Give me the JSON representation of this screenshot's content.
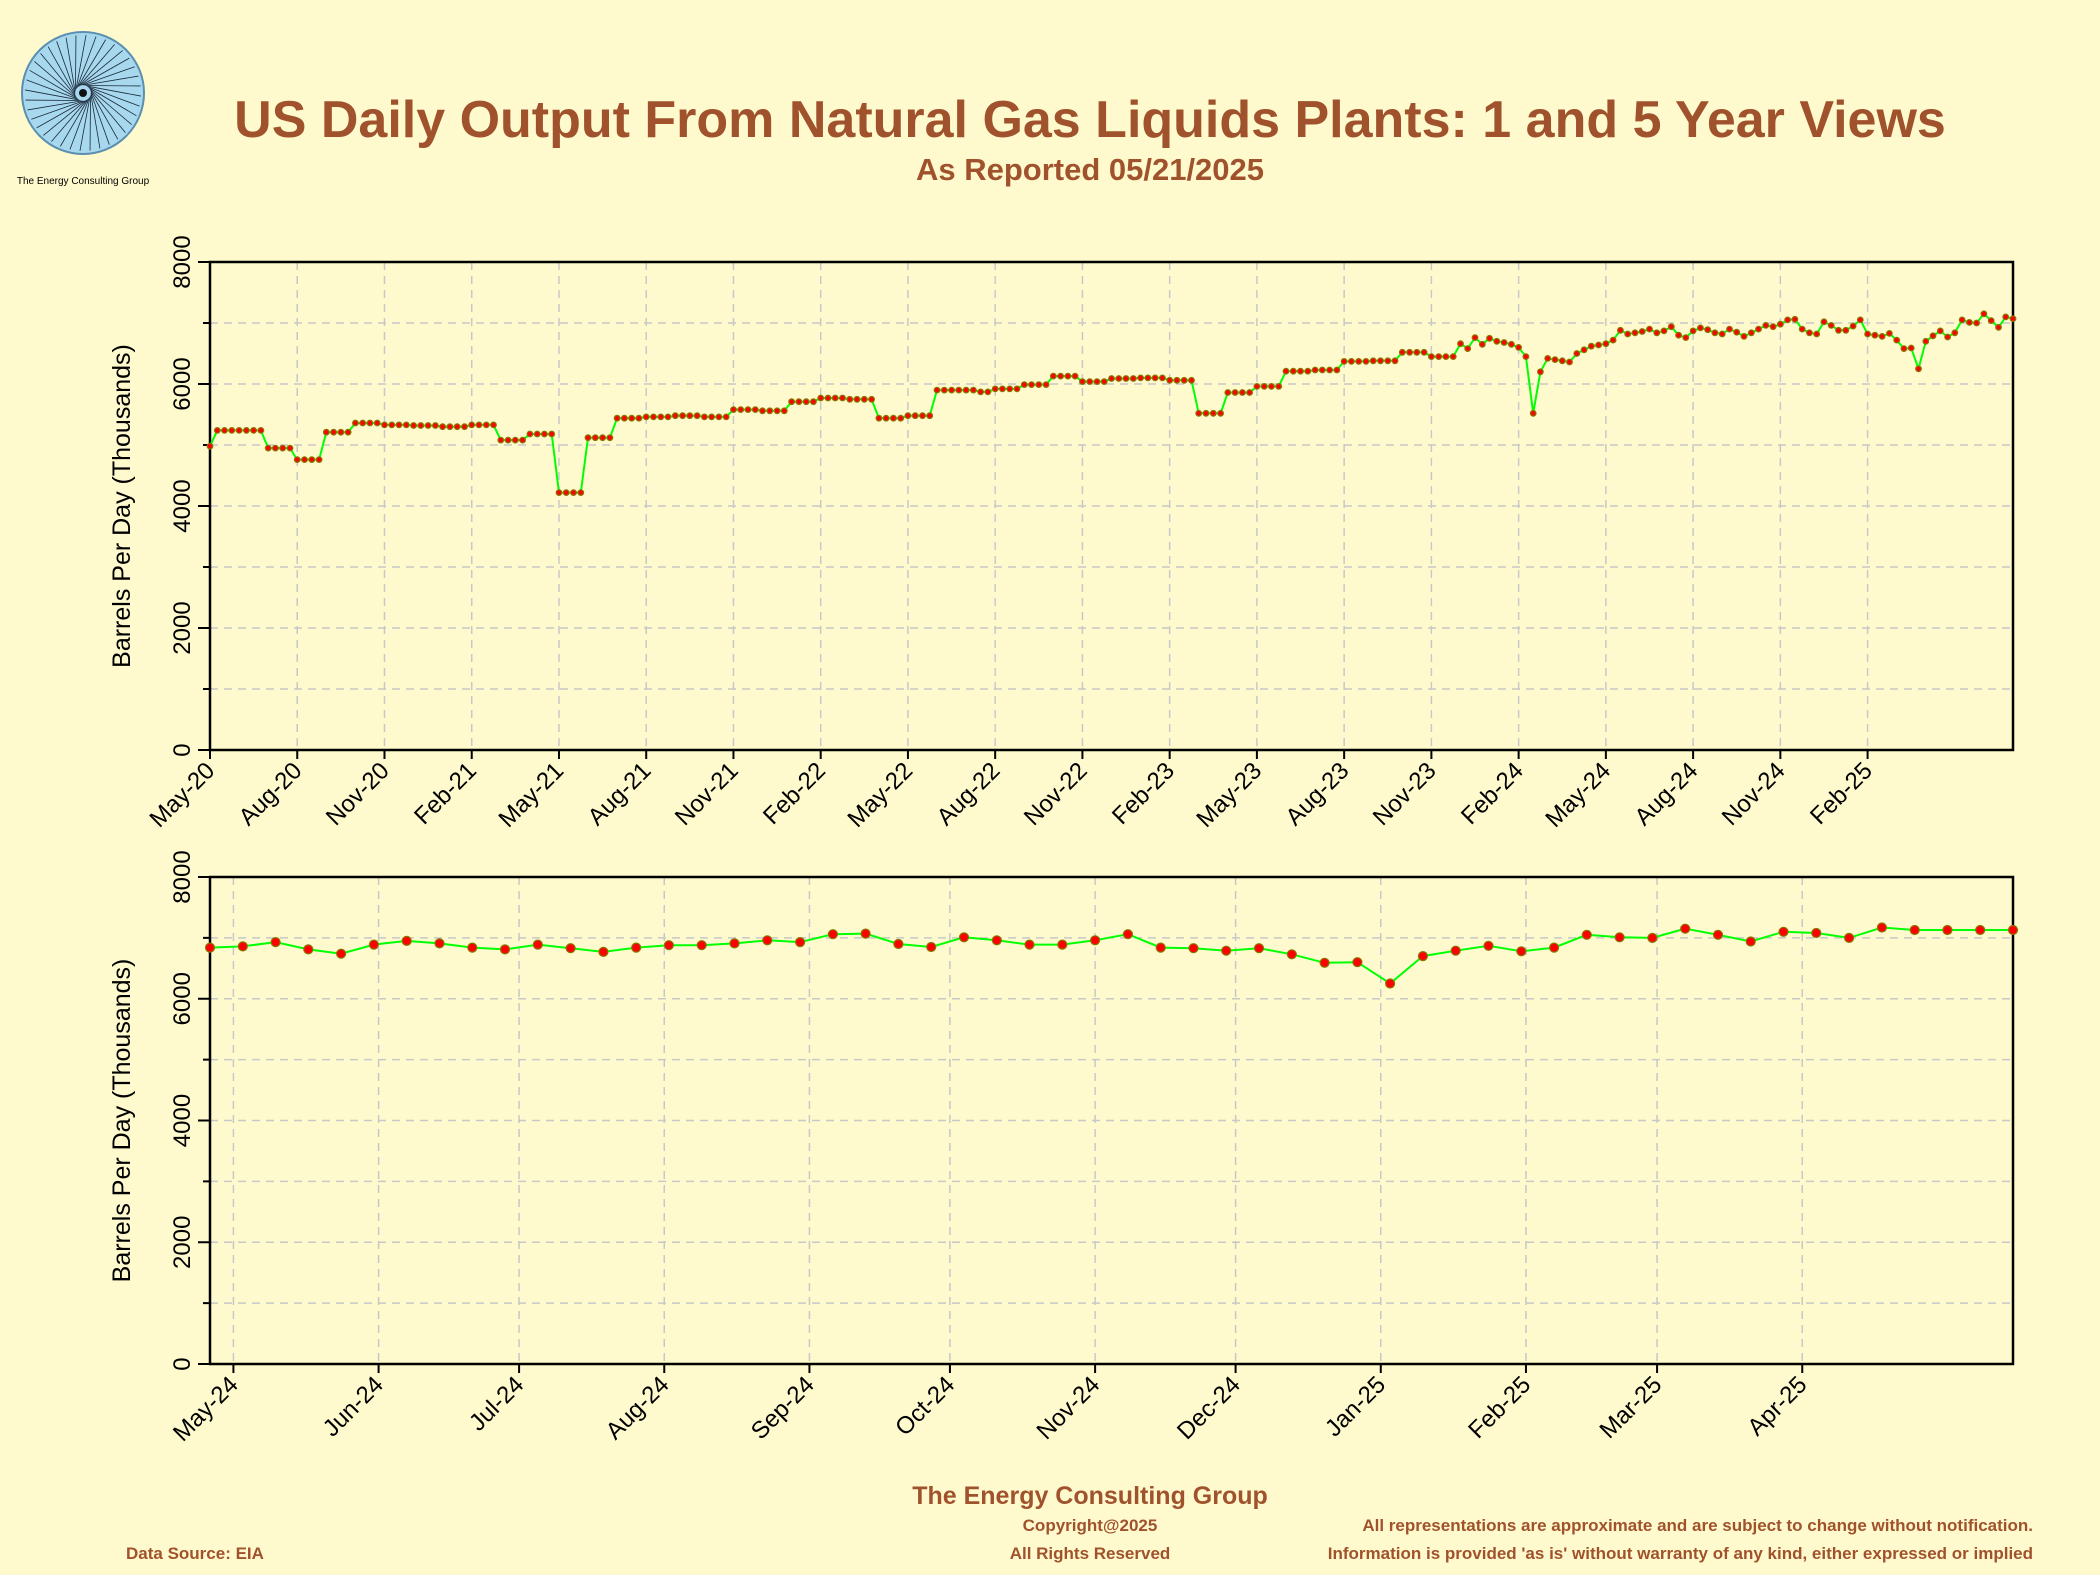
{
  "header": {
    "logo_caption": "The Energy Consulting Group",
    "title": "US Daily Output From Natural Gas Liquids Plants: 1 and 5 Year Views",
    "subtitle": "As Reported 05/21/2025"
  },
  "colors": {
    "background": "#fffacd",
    "title": "#a0522d",
    "line": "#00ff00",
    "marker_fill": "#ff0000",
    "marker_outline": "#8b7500",
    "grid": "#c8c8c8"
  },
  "footer": {
    "company": "The Energy Consulting Group",
    "copyright": "Copyright@2025",
    "rights": "All Rights Reserved",
    "data_source": "Data Source: EIA",
    "disclaimer1": "All representations are approximate and are subject to change without notification.",
    "disclaimer2": "Information is provided 'as is' without warranty of any kind, either expressed or implied"
  },
  "chart_data": [
    {
      "type": "line",
      "title": "",
      "xlabel": "",
      "ylabel": "Barrels Per Day (Thousands)",
      "ylim": [
        0,
        8000
      ],
      "yticks": [
        0,
        2000,
        4000,
        6000,
        8000
      ],
      "xlim": [
        "2020-05",
        "2025-05"
      ],
      "xticks": [
        {
          "label": "May-20",
          "month": "2020-05"
        },
        {
          "label": "Aug-20",
          "month": "2020-08"
        },
        {
          "label": "Nov-20",
          "month": "2020-11"
        },
        {
          "label": "Feb-21",
          "month": "2021-02"
        },
        {
          "label": "May-21",
          "month": "2021-05"
        },
        {
          "label": "Aug-21",
          "month": "2021-08"
        },
        {
          "label": "Nov-21",
          "month": "2021-11"
        },
        {
          "label": "Feb-22",
          "month": "2022-02"
        },
        {
          "label": "May-22",
          "month": "2022-05"
        },
        {
          "label": "Aug-22",
          "month": "2022-08"
        },
        {
          "label": "Nov-22",
          "month": "2022-11"
        },
        {
          "label": "Feb-23",
          "month": "2023-02"
        },
        {
          "label": "May-23",
          "month": "2023-05"
        },
        {
          "label": "Aug-23",
          "month": "2023-08"
        },
        {
          "label": "Nov-23",
          "month": "2023-11"
        },
        {
          "label": "Feb-24",
          "month": "2024-02"
        },
        {
          "label": "May-24",
          "month": "2024-05"
        },
        {
          "label": "Aug-24",
          "month": "2024-08"
        },
        {
          "label": "Nov-24",
          "month": "2024-11"
        },
        {
          "label": "Feb-25",
          "month": "2025-02"
        }
      ],
      "grid": true,
      "series": [
        {
          "name": "",
          "monthly": [
            {
              "month": "2020-05",
              "values": [
                4980,
                5240,
                5240,
                5240
              ]
            },
            {
              "month": "2020-06",
              "values": [
                5240,
                5240,
                5240,
                5240
              ]
            },
            {
              "month": "2020-07",
              "values": [
                4950,
                4950,
                4950,
                4950
              ]
            },
            {
              "month": "2020-08",
              "values": [
                4760,
                4760,
                4760,
                4760
              ]
            },
            {
              "month": "2020-09",
              "values": [
                5210,
                5210,
                5210,
                5210
              ]
            },
            {
              "month": "2020-10",
              "values": [
                5360,
                5360,
                5360,
                5360
              ]
            },
            {
              "month": "2020-11",
              "values": [
                5330,
                5330,
                5330,
                5330
              ]
            },
            {
              "month": "2020-12",
              "values": [
                5320,
                5320,
                5320,
                5320
              ]
            },
            {
              "month": "2021-01",
              "values": [
                5300,
                5300,
                5300,
                5300
              ]
            },
            {
              "month": "2021-02",
              "values": [
                5330,
                5330,
                5330,
                5330
              ]
            },
            {
              "month": "2021-03",
              "values": [
                5080,
                5080,
                5080,
                5080
              ]
            },
            {
              "month": "2021-04",
              "values": [
                5180,
                5180,
                5180,
                5180
              ]
            },
            {
              "month": "2021-05",
              "values": [
                4220,
                4220,
                4220,
                4220
              ]
            },
            {
              "month": "2021-06",
              "values": [
                5120,
                5120,
                5120,
                5120
              ]
            },
            {
              "month": "2021-07",
              "values": [
                5440,
                5440,
                5440,
                5440
              ]
            },
            {
              "month": "2021-08",
              "values": [
                5460,
                5460,
                5460,
                5460
              ]
            },
            {
              "month": "2021-09",
              "values": [
                5480,
                5480,
                5480,
                5480
              ]
            },
            {
              "month": "2021-10",
              "values": [
                5460,
                5460,
                5460,
                5460
              ]
            },
            {
              "month": "2021-11",
              "values": [
                5580,
                5580,
                5580,
                5580
              ]
            },
            {
              "month": "2021-12",
              "values": [
                5560,
                5560,
                5560,
                5560
              ]
            },
            {
              "month": "2022-01",
              "values": [
                5710,
                5710,
                5710,
                5710
              ]
            },
            {
              "month": "2022-02",
              "values": [
                5770,
                5770,
                5770,
                5770
              ]
            },
            {
              "month": "2022-03",
              "values": [
                5750,
                5750,
                5750,
                5750
              ]
            },
            {
              "month": "2022-04",
              "values": [
                5440,
                5440,
                5440,
                5440
              ]
            },
            {
              "month": "2022-05",
              "values": [
                5480,
                5480,
                5480,
                5480
              ]
            },
            {
              "month": "2022-06",
              "values": [
                5900,
                5900,
                5900,
                5900
              ]
            },
            {
              "month": "2022-07",
              "values": [
                5900,
                5900,
                5870,
                5870
              ]
            },
            {
              "month": "2022-08",
              "values": [
                5920,
                5920,
                5920,
                5920
              ]
            },
            {
              "month": "2022-09",
              "values": [
                5990,
                5990,
                5990,
                5990
              ]
            },
            {
              "month": "2022-10",
              "values": [
                6130,
                6130,
                6130,
                6130
              ]
            },
            {
              "month": "2022-11",
              "values": [
                6040,
                6040,
                6040,
                6040
              ]
            },
            {
              "month": "2022-12",
              "values": [
                6090,
                6090,
                6090,
                6090
              ]
            },
            {
              "month": "2023-01",
              "values": [
                6100,
                6100,
                6100,
                6100
              ]
            },
            {
              "month": "2023-02",
              "values": [
                6060,
                6060,
                6060,
                6060
              ]
            },
            {
              "month": "2023-03",
              "values": [
                5520,
                5520,
                5520,
                5520
              ]
            },
            {
              "month": "2023-04",
              "values": [
                5860,
                5860,
                5860,
                5860
              ]
            },
            {
              "month": "2023-05",
              "values": [
                5960,
                5960,
                5960,
                5960
              ]
            },
            {
              "month": "2023-06",
              "values": [
                6210,
                6210,
                6210,
                6210
              ]
            },
            {
              "month": "2023-07",
              "values": [
                6230,
                6230,
                6230,
                6230
              ]
            },
            {
              "month": "2023-08",
              "values": [
                6370,
                6370,
                6370,
                6370
              ]
            },
            {
              "month": "2023-09",
              "values": [
                6380,
                6380,
                6380,
                6380
              ]
            },
            {
              "month": "2023-10",
              "values": [
                6520,
                6520,
                6520,
                6520
              ]
            },
            {
              "month": "2023-11",
              "values": [
                6450,
                6450,
                6450,
                6450
              ]
            },
            {
              "month": "2023-12",
              "values": [
                6660,
                6580,
                6760,
                6650
              ]
            },
            {
              "month": "2024-01",
              "values": [
                6750,
                6700,
                6680,
                6650
              ]
            },
            {
              "month": "2024-02",
              "values": [
                6600,
                6450,
                5520,
                6200
              ]
            },
            {
              "month": "2024-03",
              "values": [
                6420,
                6400,
                6380,
                6360
              ]
            },
            {
              "month": "2024-04",
              "values": [
                6500,
                6560,
                6620,
                6640
              ]
            },
            {
              "month": "2024-05",
              "values": [
                6660,
                6720,
                6880,
                6820
              ]
            },
            {
              "month": "2024-06",
              "values": [
                6840,
                6860,
                6900,
                6840
              ]
            },
            {
              "month": "2024-07",
              "values": [
                6870,
                6940,
                6800,
                6760
              ]
            },
            {
              "month": "2024-08",
              "values": [
                6870,
                6920,
                6890,
                6840
              ]
            },
            {
              "month": "2024-09",
              "values": [
                6820,
                6900,
                6850,
                6780
              ]
            },
            {
              "month": "2024-10",
              "values": [
                6840,
                6900,
                6960,
                6940
              ]
            },
            {
              "month": "2024-11",
              "values": [
                6980,
                7050,
                7060,
                6900
              ]
            },
            {
              "month": "2024-12",
              "values": [
                6840,
                6820,
                7020,
                6960
              ]
            },
            {
              "month": "2025-01",
              "values": [
                6880,
                6880,
                6950,
                7050
              ]
            },
            {
              "month": "2025-02",
              "values": [
                6820,
                6800,
                6780,
                6830
              ]
            },
            {
              "month": "2025-03",
              "values": [
                6720,
                6580,
                6590,
                6250
              ]
            },
            {
              "month": "2025-04",
              "values": [
                6700,
                6790,
                6870,
                6770
              ]
            },
            {
              "month": "2025-05",
              "values": [
                6840,
                7050,
                7010,
                7000
              ]
            },
            {
              "month": "2025-06",
              "values": [
                7150,
                7040,
                6930,
                7100
              ]
            },
            {
              "month": "2025-07",
              "values": [
                7070,
                6990,
                7170,
                7120
              ]
            }
          ]
        }
      ]
    },
    {
      "type": "line",
      "title": "",
      "xlabel": "",
      "ylabel": "Barrels Per Day (Thousands)",
      "ylim": [
        0,
        8000
      ],
      "yticks": [
        0,
        2000,
        4000,
        6000,
        8000
      ],
      "xlim": [
        "2024-04-26",
        "2025-05-16"
      ],
      "xticks": [
        {
          "label": "May-24",
          "date": "2024-05-01"
        },
        {
          "label": "Jun-24",
          "date": "2024-06-01"
        },
        {
          "label": "Jul-24",
          "date": "2024-07-01"
        },
        {
          "label": "Aug-24",
          "date": "2024-08-01"
        },
        {
          "label": "Sep-24",
          "date": "2024-09-01"
        },
        {
          "label": "Oct-24",
          "date": "2024-10-01"
        },
        {
          "label": "Nov-24",
          "date": "2024-11-01"
        },
        {
          "label": "Dec-24",
          "date": "2024-12-01"
        },
        {
          "label": "Jan-25",
          "date": "2025-01-01"
        },
        {
          "label": "Feb-25",
          "date": "2025-02-01"
        },
        {
          "label": "Mar-25",
          "date": "2025-03-01"
        },
        {
          "label": "Apr-25",
          "date": "2025-04-01"
        }
      ],
      "grid": true,
      "series": [
        {
          "name": "",
          "x": [
            "2024-04-26",
            "2024-05-03",
            "2024-05-10",
            "2024-05-17",
            "2024-05-24",
            "2024-05-31",
            "2024-06-07",
            "2024-06-14",
            "2024-06-21",
            "2024-06-28",
            "2024-07-05",
            "2024-07-12",
            "2024-07-19",
            "2024-07-26",
            "2024-08-02",
            "2024-08-09",
            "2024-08-16",
            "2024-08-23",
            "2024-08-30",
            "2024-09-06",
            "2024-09-13",
            "2024-09-20",
            "2024-09-27",
            "2024-10-04",
            "2024-10-11",
            "2024-10-18",
            "2024-10-25",
            "2024-11-01",
            "2024-11-08",
            "2024-11-15",
            "2024-11-22",
            "2024-11-29",
            "2024-12-06",
            "2024-12-13",
            "2024-12-20",
            "2024-12-27",
            "2025-01-03",
            "2025-01-10",
            "2025-01-17",
            "2025-01-24",
            "2025-01-31",
            "2025-02-07",
            "2025-02-14",
            "2025-02-21",
            "2025-02-28",
            "2025-03-07",
            "2025-03-14",
            "2025-03-21",
            "2025-03-28",
            "2025-04-04",
            "2025-04-11",
            "2025-04-18",
            "2025-04-25",
            "2025-05-02",
            "2025-05-09",
            "2025-05-16"
          ],
          "values": [
            6840,
            6860,
            6930,
            6810,
            6740,
            6890,
            6950,
            6910,
            6840,
            6810,
            6890,
            6830,
            6770,
            6840,
            6880,
            6880,
            6910,
            6960,
            6930,
            7060,
            7070,
            6900,
            6850,
            7010,
            6960,
            6890,
            6890,
            6960,
            7060,
            6840,
            6830,
            6790,
            6830,
            6730,
            6590,
            6600,
            6250,
            6700,
            6790,
            6870,
            6780,
            6840,
            7050,
            7010,
            7000,
            7150,
            7050,
            6940,
            7100,
            7080,
            7000,
            7170,
            7130,
            7130,
            7130,
            7130
          ]
        }
      ]
    }
  ]
}
